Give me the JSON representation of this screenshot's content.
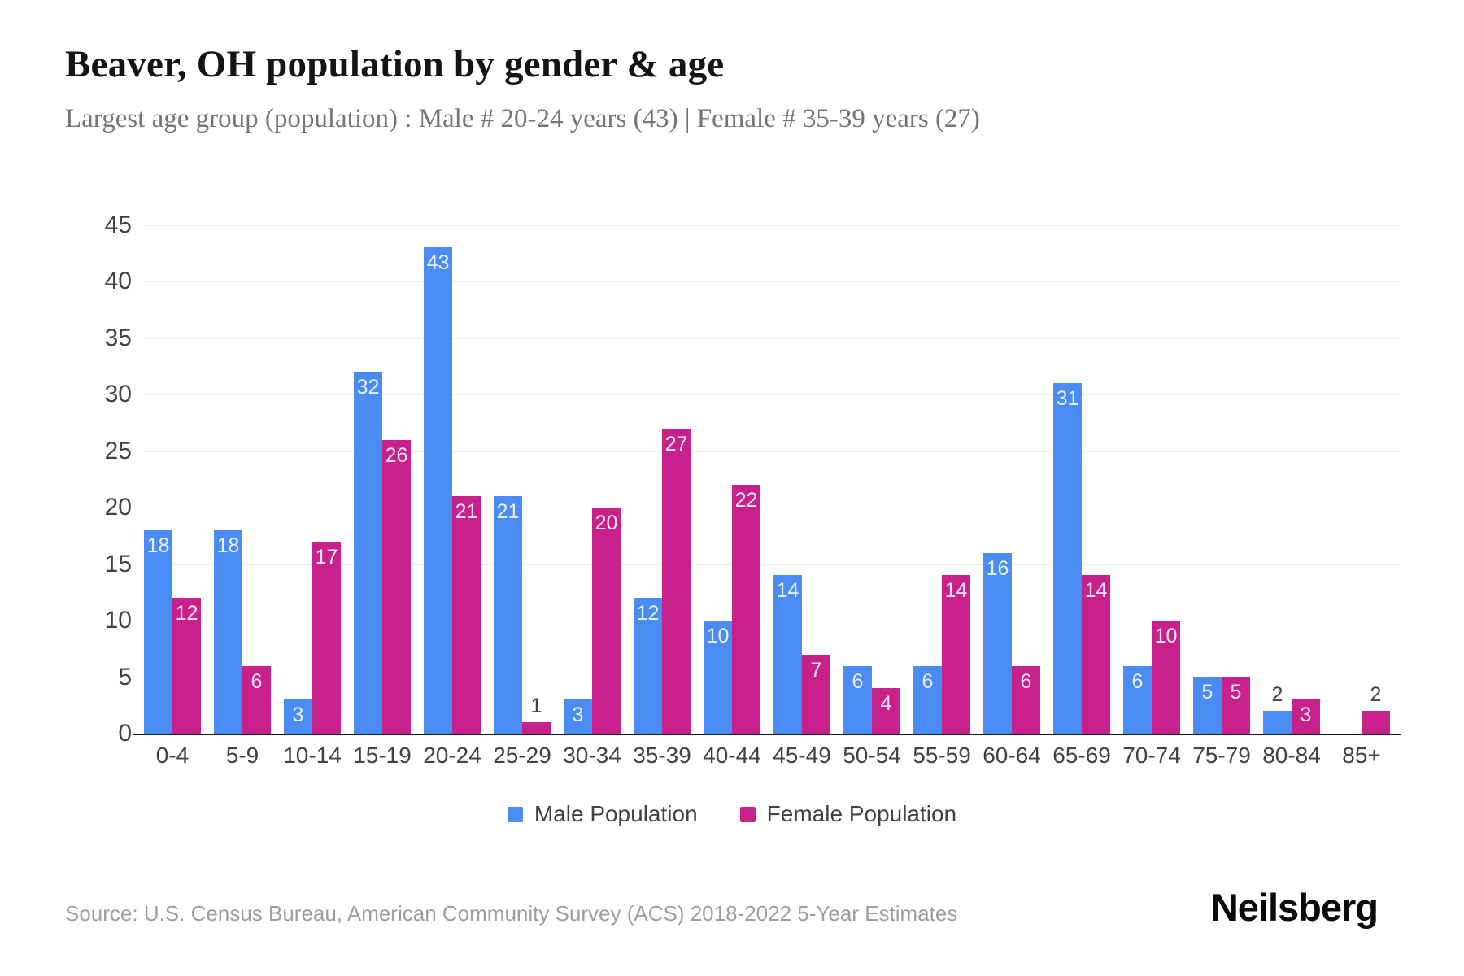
{
  "header": {
    "title": "Beaver, OH population by gender & age",
    "subtitle": "Largest age group (population) : Male # 20-24 years (43) | Female # 35-39 years (27)"
  },
  "chart_data": {
    "type": "bar",
    "title": "Beaver, OH population by gender & age",
    "categories": [
      "0-4",
      "5-9",
      "10-14",
      "15-19",
      "20-24",
      "25-29",
      "30-34",
      "35-39",
      "40-44",
      "45-49",
      "50-54",
      "55-59",
      "60-64",
      "65-69",
      "70-74",
      "75-79",
      "80-84",
      "85+"
    ],
    "series": [
      {
        "name": "Male Population",
        "color": "#4b8bf4",
        "values": [
          18,
          18,
          3,
          32,
          43,
          21,
          3,
          12,
          10,
          14,
          6,
          6,
          16,
          31,
          6,
          5,
          2,
          0
        ]
      },
      {
        "name": "Female Population",
        "color": "#c9218c",
        "values": [
          12,
          6,
          17,
          26,
          21,
          1,
          20,
          27,
          22,
          7,
          4,
          14,
          6,
          14,
          10,
          5,
          3,
          2
        ]
      }
    ],
    "xlabel": "",
    "ylabel": "",
    "ylim": [
      0,
      45
    ],
    "yticks": [
      0,
      5,
      10,
      15,
      20,
      25,
      30,
      35,
      40,
      45
    ],
    "grid": "horizontal",
    "legend_position": "bottom",
    "value_labels": "shown on every bar; white inside bar when it fits, dark gray above bar for values of 2 or less"
  },
  "footer": {
    "source": "Source: U.S. Census Bureau, American Community Survey (ACS) 2018-2022 5-Year Estimates",
    "brand": "Neilsberg"
  }
}
